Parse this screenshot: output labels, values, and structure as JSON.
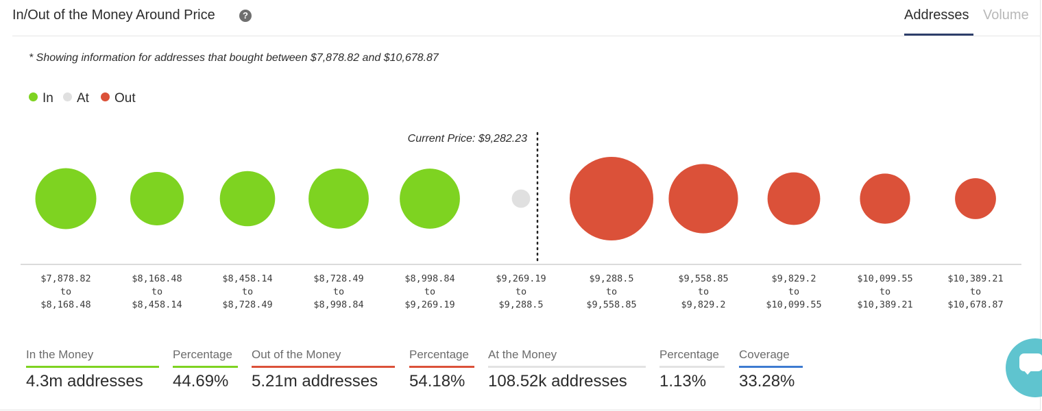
{
  "header": {
    "title": "In/Out of the Money Around Price",
    "tabs": [
      {
        "label": "Addresses",
        "active": true
      },
      {
        "label": "Volume",
        "active": false
      }
    ]
  },
  "note": "* Showing information for addresses that bought between $7,878.82 and $10,678.87",
  "legend": [
    {
      "label": "In",
      "color": "#7ed321"
    },
    {
      "label": "At",
      "color": "#e0e0e0"
    },
    {
      "label": "Out",
      "color": "#db5139"
    }
  ],
  "chart_data": {
    "type": "scatter",
    "title": "In/Out of the Money Around Price",
    "annotation": "Current Price: $9,282.23",
    "current_price": 9282.23,
    "buckets": [
      {
        "from": "$7,878.82",
        "to_word": "to",
        "to": "$8,168.48",
        "status": "In",
        "relative_size": 0.73
      },
      {
        "from": "$8,168.48",
        "to_word": "to",
        "to": "$8,458.14",
        "status": "In",
        "relative_size": 0.64
      },
      {
        "from": "$8,458.14",
        "to_word": "to",
        "to": "$8,728.49",
        "status": "In",
        "relative_size": 0.66
      },
      {
        "from": "$8,728.49",
        "to_word": "to",
        "to": "$8,998.84",
        "status": "In",
        "relative_size": 0.72
      },
      {
        "from": "$8,998.84",
        "to_word": "to",
        "to": "$9,269.19",
        "status": "In",
        "relative_size": 0.72
      },
      {
        "from": "$9,269.19",
        "to_word": "to",
        "to": "$9,288.5",
        "status": "At",
        "relative_size": 0.22
      },
      {
        "from": "$9,288.5",
        "to_word": "to",
        "to": "$9,558.85",
        "status": "Out",
        "relative_size": 1.0
      },
      {
        "from": "$9,558.85",
        "to_word": "to",
        "to": "$9,829.2",
        "status": "Out",
        "relative_size": 0.83
      },
      {
        "from": "$9,829.2",
        "to_word": "to",
        "to": "$10,099.55",
        "status": "Out",
        "relative_size": 0.63
      },
      {
        "from": "$10,099.55",
        "to_word": "to",
        "to": "$10,389.21",
        "status": "Out",
        "relative_size": 0.6
      },
      {
        "from": "$10,389.21",
        "to_word": "to",
        "to": "$10,678.87",
        "status": "Out",
        "relative_size": 0.49
      }
    ],
    "colors": {
      "In": "#7ed321",
      "At": "#e0e0e0",
      "Out": "#db5139"
    }
  },
  "stats": [
    {
      "label": "In the Money",
      "value": "4.3m addresses",
      "color": "#7ed321"
    },
    {
      "label": "Percentage",
      "value": "44.69%",
      "color": "#7ed321"
    },
    {
      "label": "Out of the Money",
      "value": "5.21m addresses",
      "color": "#db5139"
    },
    {
      "label": "Percentage",
      "value": "54.18%",
      "color": "#db5139"
    },
    {
      "label": "At the Money",
      "value": "108.52k addresses",
      "color": "#e3e3e3"
    },
    {
      "label": "Percentage",
      "value": "1.13%",
      "color": "#e3e3e3"
    },
    {
      "label": "Coverage",
      "value": "33.28%",
      "color": "#3d7bd1"
    }
  ],
  "chat_widget": {
    "icon": "chat-bubble-icon"
  }
}
